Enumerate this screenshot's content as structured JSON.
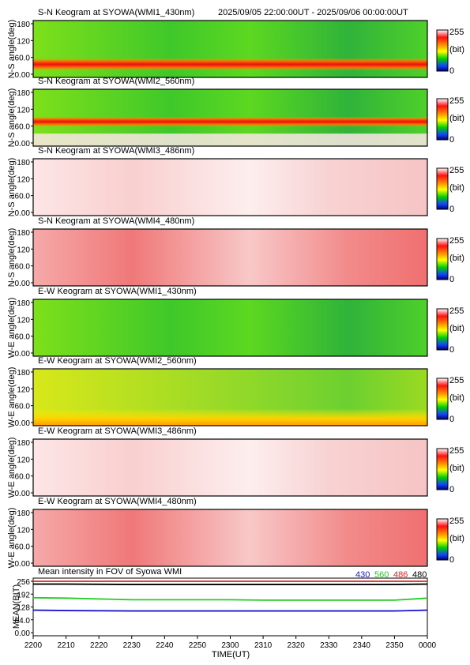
{
  "header": {
    "time_range": "2025/09/05 22:00:00UT - 2025/09/06 00:00:00UT"
  },
  "colorbar": {
    "max": "255",
    "unit": "(bit)",
    "min": "0",
    "stops": [
      "#ffffff",
      "#ff1010",
      "#ff9900",
      "#ffff00",
      "#00d000",
      "#1040ff",
      "#000060"
    ]
  },
  "panels": [
    {
      "title": "S-N Keogram at SYOWA(WMI1_430nm)",
      "ylabel": "N-S angle(deg)",
      "yticks": [
        "180",
        "120",
        "60.0",
        "0.00"
      ],
      "palette": "green",
      "band": "red-low"
    },
    {
      "title": "S-N Keogram at SYOWA(WMI2_560nm)",
      "ylabel": "N-S angle(deg)",
      "yticks": [
        "180",
        "120",
        "60.0",
        "0.00"
      ],
      "palette": "green",
      "band": "red-mid"
    },
    {
      "title": "S-N Keogram at SYOWA(WMI3_486nm)",
      "ylabel": "N-S angle(deg)",
      "yticks": [
        "180",
        "120",
        "60.0",
        "0.00"
      ],
      "palette": "pink",
      "band": "none"
    },
    {
      "title": "S-N Keogram at SYOWA(WMI4_480nm)",
      "ylabel": "N-S angle(deg)",
      "yticks": [
        "180",
        "120",
        "60.0",
        "0.00"
      ],
      "palette": "red",
      "band": "none"
    },
    {
      "title": "E-W Keogram at SYOWA(WMI1_430nm)",
      "ylabel": "W-E angle(deg)",
      "yticks": [
        "180",
        "120",
        "60.0",
        "0.00"
      ],
      "palette": "green",
      "band": "none"
    },
    {
      "title": "E-W Keogram at SYOWA(WMI2_560nm)",
      "ylabel": "W-E angle(deg)",
      "yticks": [
        "180",
        "120",
        "60.0",
        "0.00"
      ],
      "palette": "yellowgreen",
      "band": "yellow-low"
    },
    {
      "title": "E-W Keogram at SYOWA(WMI3_486nm)",
      "ylabel": "W-E angle(deg)",
      "yticks": [
        "180",
        "120",
        "60.0",
        "0.00"
      ],
      "palette": "pink",
      "band": "none"
    },
    {
      "title": "E-W Keogram at SYOWA(WMI4_480nm)",
      "ylabel": "W-E angle(deg)",
      "yticks": [
        "180",
        "120",
        "60.0",
        "0.00"
      ],
      "palette": "red",
      "band": "none"
    }
  ],
  "chart_data": {
    "type": "line",
    "title": "Mean intensity in FOV of Syowa WMI",
    "xlabel": "TIME(UT)",
    "ylabel": "MEAN(BIT)",
    "x_ticks": [
      "2200",
      "2210",
      "2220",
      "2230",
      "2240",
      "2250",
      "2300",
      "2310",
      "2320",
      "2330",
      "2340",
      "2350",
      "0000"
    ],
    "y_ticks": [
      "256",
      "192",
      "128",
      "64.0",
      "0.00"
    ],
    "ylim": [
      0,
      256
    ],
    "x_minutes_from_2200": [
      0,
      10,
      20,
      30,
      40,
      50,
      60,
      70,
      80,
      90,
      100,
      110,
      120
    ],
    "series": [
      {
        "name": "430",
        "color": "#1a1acc",
        "values": [
          112,
          110,
          109,
          108,
          108,
          108,
          108,
          108,
          108,
          108,
          108,
          108,
          112
        ]
      },
      {
        "name": "560",
        "color": "#22cc22",
        "values": [
          174,
          172,
          168,
          164,
          164,
          164,
          164,
          162,
          162,
          162,
          162,
          162,
          172
        ]
      },
      {
        "name": "486",
        "color": "#dd2222",
        "values": [
          256,
          256,
          256,
          256,
          256,
          256,
          256,
          256,
          256,
          256,
          256,
          256,
          256
        ]
      },
      {
        "name": "480",
        "color": "#000000",
        "values": [
          242,
          242,
          241,
          240,
          240,
          240,
          240,
          240,
          240,
          240,
          240,
          240,
          242
        ]
      }
    ]
  }
}
